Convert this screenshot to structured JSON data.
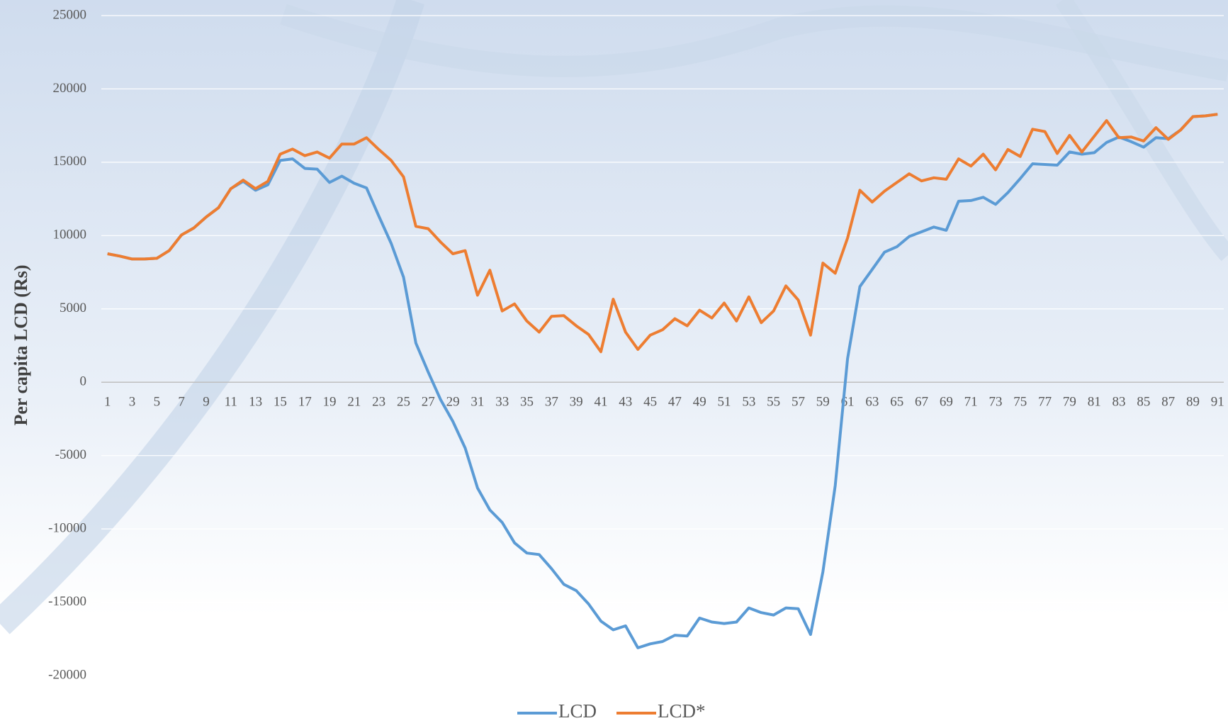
{
  "chart_data": {
    "type": "line",
    "y_label": "Per capita LCD (Rs)",
    "x": [
      1,
      2,
      3,
      4,
      5,
      6,
      7,
      8,
      9,
      10,
      11,
      12,
      13,
      14,
      15,
      16,
      17,
      18,
      19,
      20,
      21,
      22,
      23,
      24,
      25,
      26,
      27,
      28,
      29,
      30,
      31,
      32,
      33,
      34,
      35,
      36,
      37,
      38,
      39,
      40,
      41,
      42,
      43,
      44,
      45,
      46,
      47,
      48,
      49,
      50,
      51,
      52,
      53,
      54,
      55,
      56,
      57,
      58,
      59,
      60,
      61,
      62,
      63,
      64,
      65,
      66,
      67,
      68,
      69,
      70,
      71,
      72,
      73,
      74,
      75,
      76,
      77,
      78,
      79,
      80,
      81,
      82,
      83,
      84,
      85,
      86,
      87,
      88,
      89,
      90,
      91
    ],
    "xlim": [
      0.5,
      91.5
    ],
    "xticks": [
      1,
      3,
      5,
      7,
      9,
      11,
      13,
      15,
      17,
      19,
      21,
      23,
      25,
      27,
      29,
      31,
      33,
      35,
      37,
      39,
      41,
      43,
      45,
      47,
      49,
      51,
      53,
      55,
      57,
      59,
      61,
      63,
      65,
      67,
      69,
      71,
      73,
      75,
      77,
      79,
      81,
      83,
      85,
      87,
      89,
      91
    ],
    "ylim": [
      -20000,
      25000
    ],
    "yticks": [
      -20000,
      -15000,
      -10000,
      -5000,
      0,
      5000,
      10000,
      15000,
      20000,
      25000
    ],
    "grid": true,
    "legend": "bottom",
    "series": [
      {
        "name": "LCD",
        "color": "#5b9bd5",
        "values": [
          8760,
          8600,
          8400,
          8400,
          8450,
          8970,
          10040,
          10520,
          11270,
          11900,
          13200,
          13700,
          13090,
          13460,
          15120,
          15230,
          14580,
          14530,
          13620,
          14050,
          13570,
          13250,
          11330,
          9460,
          7160,
          2670,
          690,
          -1180,
          -2670,
          -4490,
          -7210,
          -8710,
          -9560,
          -10950,
          -11650,
          -11750,
          -12710,
          -13780,
          -14210,
          -15120,
          -16290,
          -16880,
          -16610,
          -18110,
          -17840,
          -17680,
          -17250,
          -17310,
          -16080,
          -16350,
          -16450,
          -16350,
          -15390,
          -15710,
          -15870,
          -15390,
          -15440,
          -17200,
          -12930,
          -7050,
          1600,
          6520,
          7690,
          8870,
          9240,
          9940,
          10260,
          10580,
          10360,
          12340,
          12390,
          12610,
          12130,
          12930,
          13890,
          14900,
          14850,
          14800,
          15700,
          15550,
          15650,
          16350,
          16720,
          16400,
          16030,
          16670,
          16610,
          17200,
          18110,
          18160,
          18270
        ]
      },
      {
        "name": "LCD*",
        "color": "#ed7d31",
        "values": [
          8760,
          8600,
          8400,
          8400,
          8450,
          8970,
          10040,
          10520,
          11270,
          11900,
          13200,
          13780,
          13200,
          13700,
          15550,
          15900,
          15450,
          15700,
          15280,
          16240,
          16240,
          16670,
          15870,
          15120,
          14000,
          10630,
          10470,
          9560,
          8760,
          8970,
          5930,
          7640,
          4860,
          5340,
          4170,
          3420,
          4490,
          4540,
          3850,
          3260,
          2080,
          5660,
          3420,
          2240,
          3210,
          3580,
          4330,
          3850,
          4910,
          4380,
          5400,
          4170,
          5820,
          4060,
          4860,
          6570,
          5610,
          3210,
          8120,
          7430,
          9830,
          13090,
          12290,
          13030,
          13620,
          14210,
          13730,
          13940,
          13840,
          15230,
          14740,
          15550,
          14480,
          15870,
          15390,
          17250,
          17090,
          15600,
          16830,
          15700,
          16770,
          17840,
          16670,
          16720,
          16450,
          17360,
          16560,
          17200,
          18110,
          18160,
          18270
        ]
      }
    ]
  }
}
